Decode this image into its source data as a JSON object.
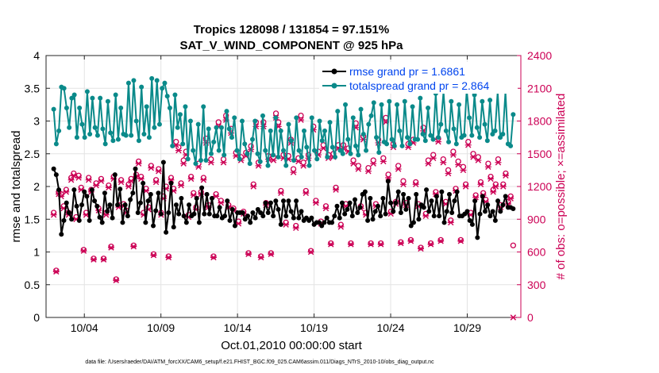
{
  "chart_data": {
    "type": "line",
    "title": "Tropics 128098 / 131854 = 97.151%",
    "subtitle": "SAT_V_WIND_COMPONENT @ 925 hPa",
    "xlabel": "Oct.01,2010 00:00:00 start",
    "ylabel": "rmse and totalspread",
    "ylabel_right": "# of obs: o=possible; ×=assimilated",
    "footnote": "data file: /Users/raeder/DAI/ATM_forcXX/CAM6_setup/f.e21.FHIST_BGC.f09_025.CAM6assim.011/Diags_NTrS_2010-10/obs_diag_output.nc",
    "xlim": [
      1.5,
      32.5
    ],
    "ylim": [
      0,
      4
    ],
    "ylim_right": [
      0,
      2400
    ],
    "grid": true,
    "x_ticks": [
      4,
      9,
      14,
      19,
      24,
      29
    ],
    "x_tick_labels": [
      "10/04",
      "10/09",
      "10/14",
      "10/19",
      "10/24",
      "10/29"
    ],
    "y_ticks": [
      0,
      0.5,
      1,
      1.5,
      2,
      2.5,
      3,
      3.5,
      4
    ],
    "y_tick_labels": [
      "0",
      "0.5",
      "1",
      "1.5",
      "2",
      "2.5",
      "3",
      "3.5",
      "4"
    ],
    "y_right_ticks": [
      0,
      300,
      600,
      900,
      1200,
      1500,
      1800,
      2100,
      2400
    ],
    "y_right_tick_labels": [
      "0",
      "300",
      "600",
      "900",
      "1200",
      "1500",
      "1800",
      "2100",
      "2400"
    ],
    "legend": {
      "location": "top-right"
    },
    "colors": {
      "rmse": "#000000",
      "spread": "#0a8a8a",
      "obs": "#cc0055",
      "legend_text": "#0044ee"
    },
    "series": [
      {
        "name": "rmse grand pr = 1.6861",
        "style": "line-marker",
        "values": [
          2.27,
          2.18,
          1.95,
          1.27,
          1.48,
          1.75,
          1.6,
          1.5,
          1.95,
          1.7,
          1.48,
          1.72,
          1.92,
          1.85,
          1.48,
          1.95,
          1.78,
          1.7,
          1.53,
          1.45,
          1.9,
          1.62,
          1.72,
          1.52,
          2.18,
          1.72,
          1.96,
          1.45,
          1.72,
          1.55,
          1.8,
          1.9,
          2.27,
          1.6,
          1.75,
          2.05,
          1.45,
          1.78,
          1.88,
          1.4,
          1.63,
          1.9,
          1.58,
          2.37,
          1.3,
          1.6,
          2.05,
          1.38,
          1.72,
          1.58,
          1.82,
          1.55,
          1.45,
          1.72,
          1.55,
          1.58,
          1.82,
          1.45,
          1.98,
          1.58,
          1.88,
          1.58,
          1.82,
          1.55,
          1.55,
          1.68,
          1.52,
          1.55,
          1.78,
          1.48,
          1.65,
          1.4,
          1.6,
          1.6,
          1.6,
          1.5,
          1.55,
          1.45,
          1.6,
          1.52,
          1.65,
          1.6,
          1.55,
          1.75,
          1.6,
          1.75,
          1.55,
          1.78,
          1.65,
          1.42,
          1.78,
          1.55,
          1.78,
          1.62,
          1.52,
          1.78,
          1.52,
          1.62,
          1.48,
          1.52,
          1.48,
          1.52,
          1.42,
          1.45,
          1.45,
          1.4,
          1.45,
          1.52,
          1.45,
          1.45,
          1.55,
          1.7,
          1.52,
          1.75,
          1.58,
          1.65,
          1.75,
          1.55,
          1.8,
          1.6,
          1.68,
          1.88,
          1.92,
          1.48,
          1.82,
          1.5,
          1.62,
          1.7,
          1.55,
          1.82,
          1.58,
          2.08,
          1.75,
          1.62,
          1.75,
          1.92,
          1.6,
          1.88,
          1.65,
          1.82,
          1.4,
          1.45,
          1.88,
          1.5,
          1.72,
          1.68,
          1.95,
          1.62,
          1.78,
          1.55,
          1.85,
          1.55,
          1.92,
          1.45,
          1.62,
          1.88,
          1.6,
          1.78,
          1.92,
          1.55,
          1.55,
          1.58,
          1.62,
          1.48,
          1.42,
          1.78,
          1.22,
          1.58,
          1.85,
          1.62,
          1.72,
          1.55,
          1.62,
          1.48,
          1.78,
          1.62,
          1.72,
          1.85,
          1.68,
          1.68,
          1.66
        ]
      },
      {
        "name": "totalspread grand pr = 2.864",
        "style": "line-marker",
        "values": [
          3.18,
          2.65,
          2.85,
          3.52,
          3.5,
          3.2,
          2.9,
          3.35,
          3.4,
          2.75,
          3.2,
          2.95,
          2.75,
          3.45,
          2.8,
          3.35,
          2.9,
          2.78,
          3.35,
          2.88,
          2.65,
          3.3,
          2.82,
          2.7,
          3.4,
          2.72,
          3.2,
          2.8,
          2.78,
          3.58,
          2.78,
          3.62,
          3.0,
          2.7,
          3.52,
          2.8,
          3.22,
          2.75,
          3.65,
          2.9,
          3.62,
          2.95,
          3.5,
          3.58,
          3.38,
          3.2,
          2.62,
          3.4,
          2.9,
          3.1,
          2.65,
          3.22,
          2.42,
          3.0,
          2.55,
          2.35,
          2.95,
          2.4,
          3.22,
          2.4,
          2.88,
          2.5,
          2.68,
          2.9,
          2.55,
          2.9,
          2.48,
          3.15,
          2.88,
          2.75,
          3.05,
          2.55,
          2.42,
          3.0,
          2.65,
          2.5,
          2.35,
          2.72,
          3.0,
          2.5,
          2.38,
          3.08,
          2.55,
          2.32,
          2.85,
          2.48,
          3.05,
          2.45,
          2.85,
          2.55,
          2.32,
          2.95,
          2.7,
          2.4,
          3.05,
          2.55,
          2.45,
          2.85,
          2.6,
          2.32,
          3.05,
          2.55,
          2.42,
          3.0,
          2.7,
          2.85,
          2.45,
          2.98,
          2.6,
          2.45,
          3.15,
          2.55,
          2.5,
          3.25,
          2.72,
          2.5,
          3.05,
          2.62,
          2.48,
          3.18,
          2.8,
          2.55,
          2.95,
          3.08,
          3.28,
          2.75,
          2.52,
          3.25,
          2.68,
          2.65,
          3.3,
          2.72,
          2.62,
          3.25,
          2.85,
          2.62,
          3.3,
          2.75,
          2.65,
          3.22,
          2.72,
          2.72,
          3.35,
          2.8,
          2.7,
          3.2,
          2.78,
          2.72,
          3.42,
          2.75,
          2.95,
          3.45,
          2.85,
          2.68,
          3.3,
          2.88,
          2.65,
          3.25,
          2.75,
          2.78,
          3.48,
          3.05,
          2.78,
          3.4,
          2.9,
          2.75,
          3.3,
          2.95,
          2.7,
          3.32,
          2.8,
          2.85,
          3.45,
          2.75,
          2.8,
          3.45,
          2.65,
          2.62,
          3.1
        ]
      },
      {
        "name": "obs possible",
        "axis": "right",
        "style": "marker-o",
        "values": [
          960,
          430,
          1150,
          1130,
          1020,
          1170,
          960,
          1280,
          1320,
          920,
          1300,
          1190,
          620,
          960,
          1280,
          1170,
          540,
          1230,
          1000,
          1270,
          540,
          960,
          1210,
          650,
          1290,
          350,
          1030,
          1260,
          1040,
          980,
          1220,
          1270,
          660,
          1310,
          1430,
          1290,
          960,
          1180,
          1010,
          1390,
          580,
          1260,
          1360,
          960,
          1110,
          1200,
          560,
          1280,
          1180,
          1610,
          1560,
          1230,
          1440,
          1520,
          940,
          1290,
          1140,
          1010,
          1410,
          1150,
          1280,
          1640,
          1030,
          1450,
          560,
          1130,
          1790,
          1070,
          1450,
          1850,
          1030,
          1730,
          1000,
          1510,
          880,
          1470,
          970,
          1510,
          590,
          1570,
          1220,
          1790,
          1420,
          560,
          1790,
          1050,
          1480,
          590,
          1470,
          1870,
          1790,
          1160,
          1490,
          870,
          1480,
          1630,
          1360,
          840,
          1460,
          1850,
          1420,
          1160,
          1490,
          610,
          1750,
          1070,
          1520,
          880,
          1580,
          1020,
          1490,
          680,
          1500,
          1190,
          1580,
          850,
          1580,
          1040,
          1550,
          680,
          1440,
          1780,
          1390,
          1020,
          1660,
          960,
          1370,
          680,
          1440,
          1040,
          1630,
          680,
          1460,
          1830,
          1310,
          970,
          1590,
          1060,
          1390,
          690,
          1250,
          1050,
          1590,
          710,
          1630,
          1240,
          1040,
          640,
          1740,
          950,
          1440,
          680,
          1490,
          1150,
          1640,
          710,
          1450,
          1060,
          1350,
          890,
          1520,
          1180,
          1430,
          710,
          1380,
          1220,
          1610,
          960,
          1500,
          1120,
          1470,
          1240,
          1140,
          1080,
          1410,
          1290,
          1170,
          1220,
          1450,
          1030,
          1220,
          1320,
          1060,
          1110,
          660
        ]
      },
      {
        "name": "obs assimilated",
        "axis": "right",
        "style": "marker-x",
        "values": [
          940,
          420,
          1130,
          1110,
          1000,
          1150,
          940,
          1260,
          1300,
          900,
          1280,
          1170,
          610,
          940,
          1260,
          1150,
          530,
          1210,
          980,
          1250,
          530,
          940,
          1190,
          640,
          1270,
          340,
          1010,
          1240,
          1020,
          960,
          1200,
          1250,
          650,
          1290,
          1410,
          1270,
          940,
          1160,
          990,
          1370,
          570,
          1240,
          1340,
          940,
          1090,
          1180,
          550,
          1260,
          1160,
          1580,
          1530,
          1210,
          1410,
          1490,
          920,
          1270,
          1120,
          990,
          1380,
          1130,
          1260,
          1600,
          1010,
          1420,
          550,
          1110,
          1750,
          1050,
          1420,
          1810,
          1010,
          1690,
          980,
          1480,
          860,
          1440,
          950,
          1480,
          580,
          1540,
          1200,
          1750,
          1390,
          550,
          1750,
          1030,
          1450,
          580,
          1440,
          1830,
          1750,
          1140,
          1460,
          850,
          1450,
          1600,
          1330,
          820,
          1430,
          1810,
          1390,
          1140,
          1460,
          600,
          1720,
          1050,
          1490,
          860,
          1550,
          1000,
          1460,
          670,
          1470,
          1170,
          1550,
          830,
          1550,
          1020,
          1520,
          670,
          1410,
          1740,
          1360,
          1000,
          1630,
          940,
          1340,
          670,
          1410,
          1020,
          1600,
          670,
          1430,
          1790,
          1280,
          950,
          1560,
          1040,
          1360,
          680,
          1220,
          1030,
          1560,
          700,
          1600,
          1220,
          1020,
          630,
          1710,
          930,
          1410,
          670,
          1460,
          1130,
          1610,
          700,
          1420,
          1040,
          1320,
          870,
          1490,
          1160,
          1400,
          700,
          1350,
          1200,
          1580,
          940,
          1470,
          1100,
          1440,
          1220,
          1120,
          1060,
          1380,
          1270,
          1150,
          1200,
          1420,
          1010,
          1200,
          1300,
          1040,
          1090,
          0
        ]
      }
    ]
  }
}
